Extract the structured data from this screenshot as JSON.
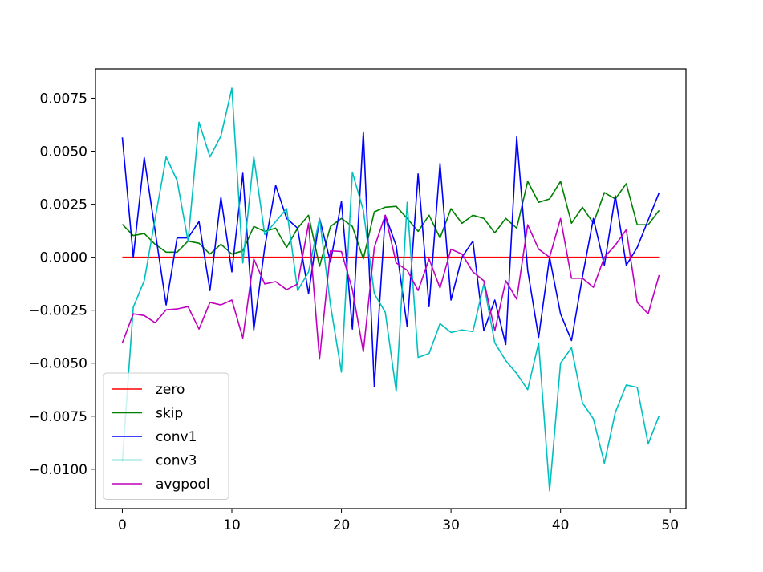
{
  "chart_data": {
    "type": "line",
    "title": "",
    "xlabel": "",
    "ylabel": "",
    "xlim": [
      -2.45,
      51.45
    ],
    "ylim": [
      -0.01186,
      0.00888
    ],
    "xticks": [
      0,
      10,
      20,
      30,
      40,
      50
    ],
    "xtick_labels": [
      "0",
      "10",
      "20",
      "30",
      "40",
      "50"
    ],
    "yticks": [
      -0.01,
      -0.0075,
      -0.005,
      -0.0025,
      0.0,
      0.0025,
      0.005,
      0.0075
    ],
    "ytick_labels": [
      "−0.0100",
      "−0.0075",
      "−0.0050",
      "−0.0025",
      "0.0000",
      "0.0025",
      "0.0050",
      "0.0075"
    ],
    "grid": false,
    "legend_position": "lower-left",
    "x": [
      0,
      1,
      2,
      3,
      4,
      5,
      6,
      7,
      8,
      9,
      10,
      11,
      12,
      13,
      14,
      15,
      16,
      17,
      18,
      19,
      20,
      21,
      22,
      23,
      24,
      25,
      26,
      27,
      28,
      29,
      30,
      31,
      32,
      33,
      34,
      35,
      36,
      37,
      38,
      39,
      40,
      41,
      42,
      43,
      44,
      45,
      46,
      47,
      48,
      49
    ],
    "series": [
      {
        "name": "zero",
        "color": "#ff0000",
        "values": [
          0,
          0,
          0,
          0,
          0,
          0,
          0,
          0,
          0,
          0,
          0,
          0,
          0,
          0,
          0,
          0,
          0,
          0,
          0,
          0,
          0,
          0,
          0,
          0,
          0,
          0,
          0,
          0,
          0,
          0,
          0,
          0,
          0,
          0,
          0,
          0,
          0,
          0,
          0,
          0,
          0,
          0,
          0,
          0,
          0,
          0,
          0,
          0,
          0,
          0
        ]
      },
      {
        "name": "skip",
        "color": "#008000",
        "values": [
          0.00155,
          0.00102,
          0.00112,
          0.00061,
          0.00024,
          0.00024,
          0.00076,
          0.00066,
          0.00015,
          0.00061,
          0.00015,
          0.0003,
          0.00145,
          0.00122,
          0.00137,
          0.00046,
          0.00137,
          0.00198,
          -0.00043,
          0.00145,
          0.00183,
          0.00145,
          -8e-05,
          0.00214,
          0.00236,
          0.0024,
          0.00183,
          0.00122,
          0.00198,
          0.00091,
          0.00229,
          0.0016,
          0.00198,
          0.00183,
          0.00115,
          0.00183,
          0.00137,
          0.00358,
          0.00259,
          0.00275,
          0.00358,
          0.0016,
          0.00236,
          0.0016,
          0.00305,
          0.00275,
          0.00347,
          0.00153,
          0.00153,
          0.00221
        ]
      },
      {
        "name": "conv1",
        "color": "#0000ff",
        "values": [
          0.00565,
          0,
          0.0047,
          0.00122,
          -0.00225,
          0.00091,
          0.00091,
          0.00168,
          -0.00157,
          0.00282,
          -0.00069,
          0.00396,
          -0.00343,
          0.00046,
          0.00339,
          0.00183,
          0.00137,
          -0.00172,
          0.00183,
          -0.00023,
          0.00263,
          -0.00339,
          0.00591,
          -0.0061,
          0.00198,
          0.00054,
          -0.00328,
          0.00393,
          -0.00233,
          0.00442,
          -0.00202,
          0,
          0.00076,
          -0.00347,
          -0.00202,
          -0.00412,
          0.00568,
          -0.00061,
          -0.00378,
          0,
          -0.00267,
          -0.00393,
          -0.00092,
          0.00183,
          -0.00038,
          0.0029,
          -0.00038,
          0.00046,
          0.00175,
          0.00305
        ]
      },
      {
        "name": "conv3",
        "color": "#00bfbf",
        "values": [
          -0.00965,
          -0.00236,
          -0.00111,
          0.00183,
          0.00473,
          0.00362,
          0.00076,
          0.00637,
          0.00473,
          0.00572,
          0.00797,
          -0.00027,
          0.00473,
          0.00107,
          0.00168,
          0.00229,
          -0.00157,
          -0.00069,
          0.00183,
          -0.00225,
          -0.00542,
          0.00401,
          0.00221,
          -0.00172,
          -0.00259,
          -0.00633,
          0.00259,
          -0.00473,
          -0.00454,
          -0.00313,
          -0.00355,
          -0.00343,
          -0.00351,
          -0.00126,
          -0.00404,
          -0.00488,
          -0.00549,
          -0.00625,
          -0.00404,
          -0.01102,
          -0.005,
          -0.00427,
          -0.00687,
          -0.00763,
          -0.00972,
          -0.00732,
          -0.00603,
          -0.00614,
          -0.00881,
          -0.00747
        ]
      },
      {
        "name": "avgpool",
        "color": "#bf00bf",
        "values": [
          -0.00404,
          -0.00267,
          -0.00275,
          -0.00309,
          -0.00248,
          -0.00244,
          -0.00233,
          -0.00339,
          -0.00213,
          -0.00225,
          -0.00202,
          -0.00381,
          -8e-05,
          -0.00126,
          -0.00115,
          -0.00153,
          -0.00126,
          0.0016,
          -0.00481,
          0.0003,
          0.00027,
          -0.00153,
          -0.00446,
          0.00046,
          0.00198,
          -0.00027,
          -0.00061,
          -0.00157,
          -8e-05,
          -0.00145,
          0.00038,
          0.00015,
          -0.00069,
          -0.00111,
          -0.00347,
          -0.00111,
          -0.00198,
          0.00153,
          0.00038,
          0,
          0.00183,
          -0.00099,
          -0.00099,
          -0.00142,
          0,
          0.00057,
          0.0013,
          -0.00213,
          -0.00267,
          -0.00084
        ]
      }
    ]
  }
}
